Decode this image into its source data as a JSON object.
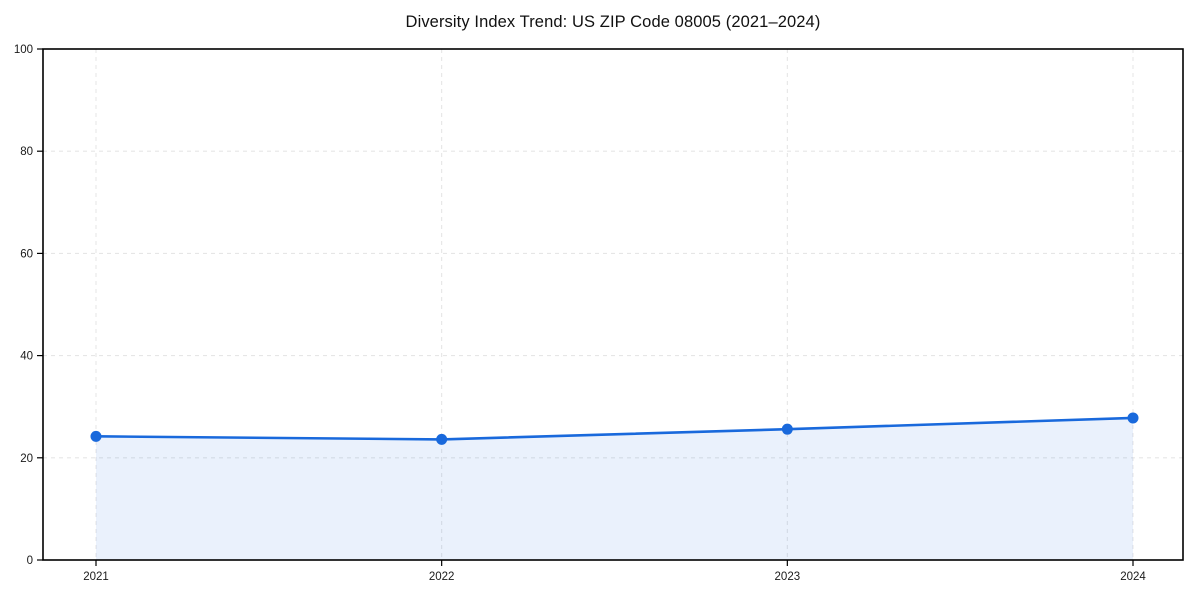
{
  "chart_data": {
    "type": "line",
    "area": true,
    "title": "Diversity Index Trend: US ZIP Code 08005 (2021–2024)",
    "categories": [
      "2021",
      "2022",
      "2023",
      "2024"
    ],
    "series": [
      {
        "name": "Diversity Index",
        "values": [
          24.2,
          23.6,
          25.6,
          27.8
        ]
      }
    ],
    "xlabel": "",
    "ylabel": "",
    "ylim": [
      0,
      100
    ],
    "yticks": [
      0,
      20,
      40,
      60,
      80,
      100
    ],
    "grid": "dashed",
    "legend": "none",
    "colors": {
      "line": "#1969dc",
      "marker": "#1969dc",
      "fill": "#1969dc",
      "fill_opacity": 0.09,
      "grid": "#e6e6e6",
      "spine": "#000000",
      "text": "#1a1a1a",
      "background": "#ffffff"
    }
  }
}
